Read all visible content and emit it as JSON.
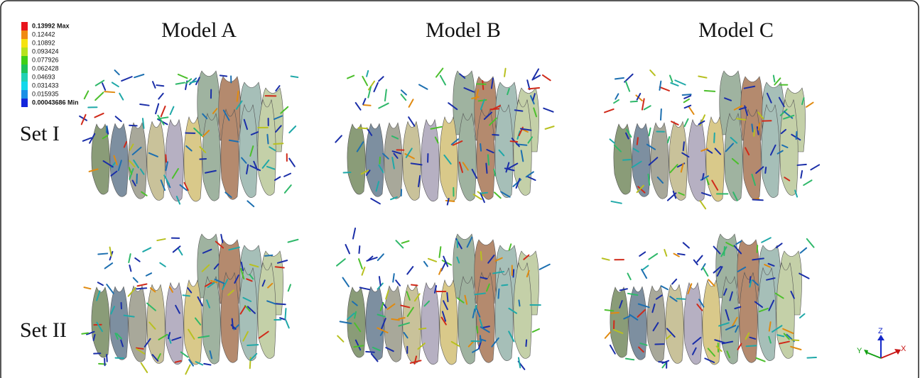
{
  "legend": {
    "entries": [
      {
        "label": "0.13992 Max",
        "color": "#e8141c"
      },
      {
        "label": "0.12442",
        "color": "#f08a12"
      },
      {
        "label": "0.10892",
        "color": "#f5e20f"
      },
      {
        "label": "0.093424",
        "color": "#b6e21c"
      },
      {
        "label": "0.077926",
        "color": "#3fcf16"
      },
      {
        "label": "0.062428",
        "color": "#1ec25a"
      },
      {
        "label": "0.04693",
        "color": "#1fd1b4"
      },
      {
        "label": "0.031433",
        "color": "#12d8ec"
      },
      {
        "label": "0.015935",
        "color": "#1a8fe6"
      },
      {
        "label": "0.00043686 Min",
        "color": "#1326dc"
      }
    ]
  },
  "models": [
    "Model A",
    "Model B",
    "Model C"
  ],
  "sets": [
    "Set I",
    "Set II"
  ],
  "axes": {
    "z": "Z",
    "y": "Y",
    "x": "X"
  }
}
